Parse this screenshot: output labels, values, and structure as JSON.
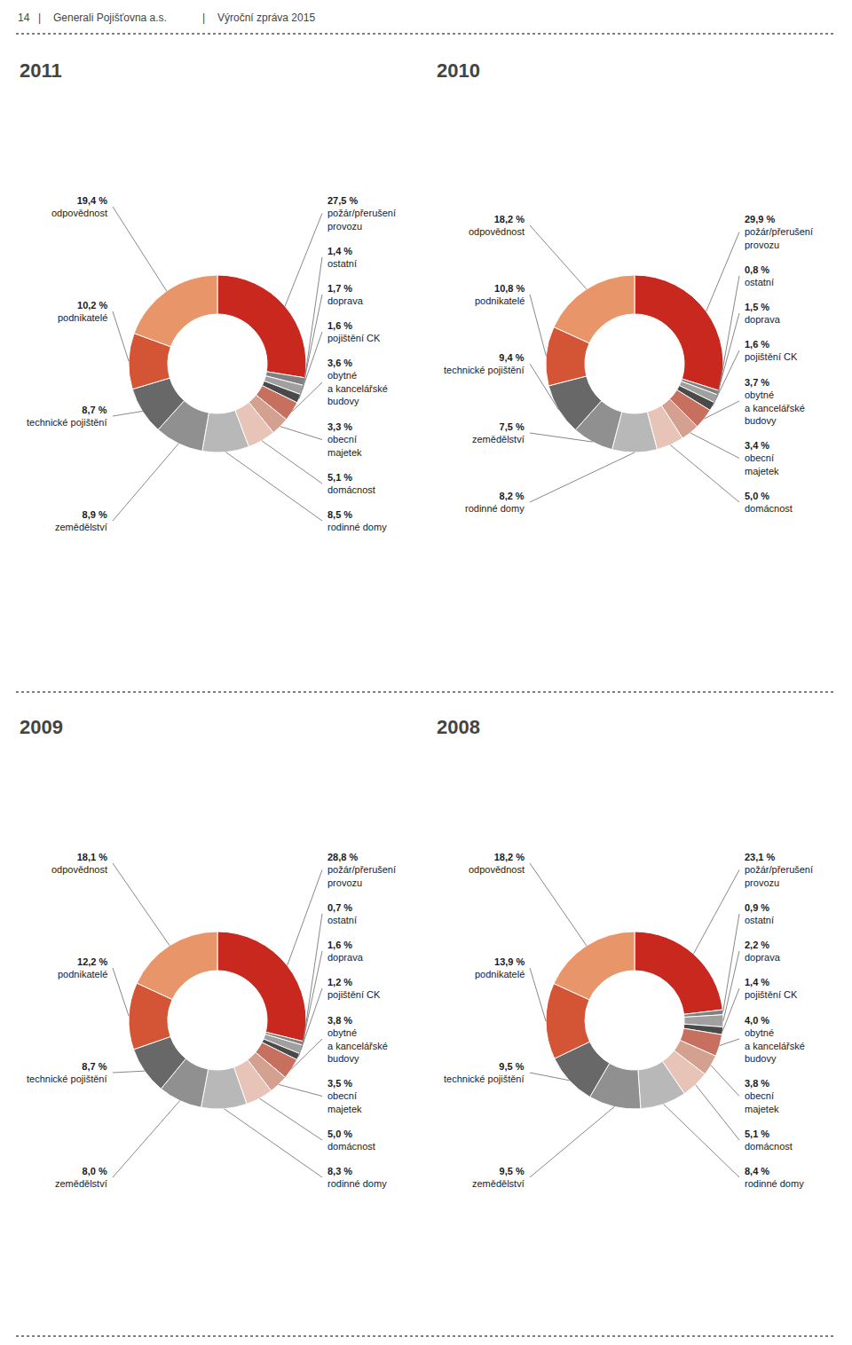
{
  "chart_data": [
    {
      "type": "pie",
      "title": "2011",
      "annotations": [
        "14",
        "|",
        "Generali Pojišťovna a.s.",
        "|",
        "Výroční zpráva 2015"
      ],
      "categories": [
        "požár/přerušení\nprovozu",
        "ostatní",
        "doprava",
        "pojištění CK",
        "obytné\na kancelářské\nbudovy",
        "obecní\nmajetek",
        "domácnost",
        "rodinné domy",
        "zemědělství",
        "technické pojištění",
        "podnikatelé",
        "odpovědnost"
      ],
      "values": [
        27.5,
        1.4,
        1.7,
        1.6,
        3.6,
        3.3,
        5.1,
        8.5,
        8.9,
        8.7,
        10.2,
        19.4
      ],
      "value_labels": [
        "27,5 %",
        "1,4 %",
        "1,7 %",
        "1,6 %",
        "3,6 %",
        "3,3 %",
        "5,1 %",
        "8,5 %",
        "8,9 %",
        "8,7 %",
        "10,2 %",
        "19,4 %"
      ],
      "colors": [
        "#c8281e",
        "#808080",
        "#a0a0a0",
        "#4a4a4a",
        "#c87060",
        "#d4a090",
        "#e8c4b8",
        "#b8b8b8",
        "#909090",
        "#686868",
        "#d45535",
        "#e8956a"
      ],
      "data_labels": true
    },
    {
      "type": "pie",
      "title": "2010",
      "categories": [
        "požár/přerušení\nprovozu",
        "ostatní",
        "doprava",
        "pojištění CK",
        "obytné\na kancelářské\nbudovy",
        "obecní\nmajetek",
        "domácnost",
        "rodinné domy",
        "zemědělství",
        "technické pojištění",
        "podnikatelé",
        "odpovědnost"
      ],
      "values": [
        29.9,
        0.8,
        1.5,
        1.6,
        3.7,
        3.4,
        5.0,
        8.2,
        7.5,
        9.4,
        10.8,
        18.2
      ],
      "value_labels": [
        "29,9 %",
        "0,8 %",
        "1,5 %",
        "1,6 %",
        "3,7 %",
        "3,4 %",
        "5,0 %",
        "8,2 %",
        "7,5 %",
        "9,4 %",
        "10,8 %",
        "18,2 %"
      ],
      "colors": [
        "#c8281e",
        "#808080",
        "#a0a0a0",
        "#4a4a4a",
        "#c87060",
        "#d4a090",
        "#e8c4b8",
        "#b8b8b8",
        "#909090",
        "#686868",
        "#d45535",
        "#e8956a"
      ],
      "data_labels": true
    },
    {
      "type": "pie",
      "title": "2009",
      "categories": [
        "požár/přerušení\nprovozu",
        "ostatní",
        "doprava",
        "pojištění CK",
        "obytné\na kancelářské\nbudovy",
        "obecní\nmajetek",
        "domácnost",
        "rodinné domy",
        "zemědělství",
        "technické pojištění",
        "podnikatelé",
        "odpovědnost"
      ],
      "values": [
        28.8,
        0.7,
        1.6,
        1.2,
        3.8,
        3.5,
        5.0,
        8.3,
        8.0,
        8.7,
        12.2,
        18.1
      ],
      "value_labels": [
        "28,8 %",
        "0,7 %",
        "1,6 %",
        "1,2 %",
        "3,8 %",
        "3,5 %",
        "5,0 %",
        "8,3 %",
        "8,0 %",
        "8,7 %",
        "12,2 %",
        "18,1 %"
      ],
      "colors": [
        "#c8281e",
        "#808080",
        "#a0a0a0",
        "#4a4a4a",
        "#c87060",
        "#d4a090",
        "#e8c4b8",
        "#b8b8b8",
        "#909090",
        "#686868",
        "#d45535",
        "#e8956a"
      ],
      "data_labels": true
    },
    {
      "type": "pie",
      "title": "2008",
      "categories": [
        "požár/přerušení\nprovozu",
        "ostatní",
        "doprava",
        "pojištění CK",
        "obytné\na kancelářské\nbudovy",
        "obecní\nmajetek",
        "domácnost",
        "rodinné domy",
        "zemědělství",
        "technické pojištění",
        "podnikatelé",
        "odpovědnost"
      ],
      "values": [
        23.1,
        0.9,
        2.2,
        1.4,
        4.0,
        3.8,
        5.1,
        8.4,
        9.5,
        9.5,
        13.9,
        18.2
      ],
      "value_labels": [
        "23,1 %",
        "0,9 %",
        "2,2 %",
        "1,4 %",
        "4,0 %",
        "3,8 %",
        "5,1 %",
        "8,4 %",
        "9,5 %",
        "9,5 %",
        "13,9 %",
        "18,2 %"
      ],
      "colors": [
        "#c8281e",
        "#808080",
        "#a0a0a0",
        "#4a4a4a",
        "#c87060",
        "#d4a090",
        "#e8c4b8",
        "#b8b8b8",
        "#909090",
        "#686868",
        "#d45535",
        "#e8956a"
      ],
      "data_labels": true
    }
  ]
}
